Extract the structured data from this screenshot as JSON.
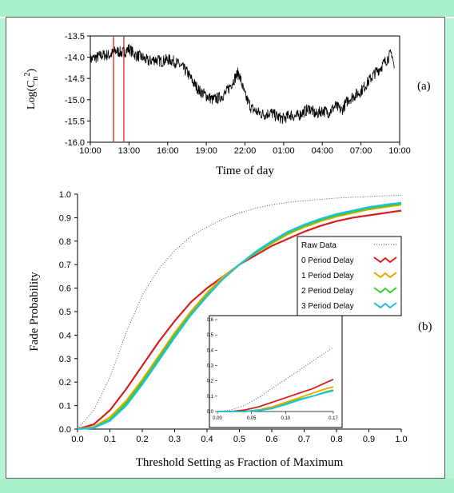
{
  "chart_data": [
    {
      "type": "line",
      "panel_label": "(a)",
      "xlabel": "Time of day",
      "ylabel": "Log(C",
      "ylabel_sub": "n",
      "ylabel_sup": "2",
      "ylabel_end": ")",
      "ylim": [
        -16.0,
        -13.5
      ],
      "xlim": [
        10,
        34
      ],
      "x_ticks": [
        10,
        13,
        16,
        19,
        22,
        25,
        28,
        31,
        34
      ],
      "x_tick_labels": [
        "10:00",
        "13:00",
        "16:00",
        "19:00",
        "22:00",
        "01:00",
        "04:00",
        "07:00",
        "10:00"
      ],
      "y_ticks": [
        -13.5,
        -14.0,
        -14.5,
        -15.0,
        -15.5,
        -16.0
      ],
      "y_tick_labels": [
        "-13.5",
        "-14.0",
        "-14.5",
        "-15.0",
        "-15.5",
        "-16.0"
      ],
      "vertical_markers": [
        11.8,
        12.6
      ],
      "marker_color": "#e04040",
      "series": [
        {
          "color": "#000000",
          "x": [
            10.0,
            10.5,
            11.0,
            11.5,
            12.0,
            12.5,
            13.0,
            13.5,
            14.0,
            14.5,
            15.0,
            15.5,
            16.0,
            16.5,
            17.0,
            17.5,
            18.0,
            18.5,
            19.0,
            19.5,
            20.0,
            20.5,
            21.0,
            21.5,
            22.0,
            22.5,
            23.0,
            23.5,
            24.0,
            24.5,
            25.0,
            25.5,
            26.0,
            26.5,
            27.0,
            27.5,
            28.0,
            28.5,
            29.0,
            29.5,
            30.0,
            30.5,
            31.0,
            31.5,
            32.0,
            32.5,
            33.0,
            33.4,
            33.6
          ],
          "y": [
            -14.05,
            -14.0,
            -13.95,
            -13.95,
            -13.85,
            -13.9,
            -13.8,
            -13.95,
            -14.0,
            -14.1,
            -14.05,
            -14.1,
            -14.05,
            -14.1,
            -14.2,
            -14.35,
            -14.6,
            -14.8,
            -14.9,
            -15.0,
            -14.95,
            -14.85,
            -14.6,
            -14.35,
            -14.9,
            -15.2,
            -15.3,
            -15.35,
            -15.3,
            -15.4,
            -15.45,
            -15.35,
            -15.4,
            -15.3,
            -15.2,
            -15.35,
            -15.25,
            -15.3,
            -15.15,
            -15.25,
            -15.0,
            -14.9,
            -14.8,
            -14.6,
            -14.4,
            -14.25,
            -14.05,
            -13.9,
            -14.3
          ]
        }
      ]
    },
    {
      "type": "line",
      "panel_label": "(b)",
      "xlabel": "Threshold Setting as Fraction of Maximum",
      "ylabel": "Fade Probability",
      "xlim": [
        0,
        1
      ],
      "ylim": [
        0,
        1
      ],
      "x_ticks": [
        0.0,
        0.1,
        0.2,
        0.3,
        0.4,
        0.5,
        0.6,
        0.7,
        0.8,
        0.9,
        1.0
      ],
      "x_tick_labels": [
        "0.0",
        "0.1",
        "0.2",
        "0.3",
        "0.4",
        "0.5",
        "0.6",
        "0.7",
        "0.8",
        "0.9",
        "1.0"
      ],
      "y_ticks": [
        0.0,
        0.1,
        0.2,
        0.3,
        0.4,
        0.5,
        0.6,
        0.7,
        0.8,
        0.9,
        1.0
      ],
      "y_tick_labels": [
        "0.0",
        "0.1",
        "0.2",
        "0.3",
        "0.4",
        "0.5",
        "0.6",
        "0.7",
        "0.8",
        "0.9",
        "1.0"
      ],
      "legend_position": "right",
      "x": [
        0.0,
        0.05,
        0.1,
        0.15,
        0.2,
        0.25,
        0.3,
        0.35,
        0.4,
        0.45,
        0.5,
        0.55,
        0.6,
        0.65,
        0.7,
        0.75,
        0.8,
        0.85,
        0.9,
        0.95,
        1.0
      ],
      "series": [
        {
          "name": "Raw Data",
          "color": "#555555",
          "dotted": true,
          "y": [
            0.0,
            0.08,
            0.22,
            0.41,
            0.57,
            0.68,
            0.76,
            0.82,
            0.86,
            0.895,
            0.92,
            0.94,
            0.955,
            0.965,
            0.972,
            0.978,
            0.983,
            0.987,
            0.99,
            0.993,
            0.995
          ]
        },
        {
          "name": "0 Period Delay",
          "color": "#d42020",
          "y": [
            0.0,
            0.02,
            0.08,
            0.17,
            0.27,
            0.37,
            0.46,
            0.54,
            0.6,
            0.65,
            0.7,
            0.74,
            0.78,
            0.81,
            0.84,
            0.865,
            0.885,
            0.9,
            0.91,
            0.92,
            0.93
          ]
        },
        {
          "name": "1 Period Delay",
          "color": "#e8a800",
          "y": [
            0.0,
            0.01,
            0.05,
            0.12,
            0.21,
            0.31,
            0.41,
            0.5,
            0.58,
            0.65,
            0.7,
            0.75,
            0.79,
            0.83,
            0.86,
            0.885,
            0.905,
            0.92,
            0.935,
            0.945,
            0.955
          ]
        },
        {
          "name": "2 Period Delay",
          "color": "#30d030",
          "y": [
            0.0,
            0.005,
            0.04,
            0.11,
            0.2,
            0.3,
            0.4,
            0.49,
            0.57,
            0.64,
            0.7,
            0.75,
            0.795,
            0.835,
            0.865,
            0.89,
            0.91,
            0.925,
            0.94,
            0.95,
            0.96
          ]
        },
        {
          "name": "3 Period Delay",
          "color": "#20c0e0",
          "y": [
            0.0,
            0.005,
            0.035,
            0.1,
            0.19,
            0.29,
            0.39,
            0.485,
            0.565,
            0.64,
            0.7,
            0.755,
            0.8,
            0.84,
            0.87,
            0.895,
            0.915,
            0.93,
            0.945,
            0.955,
            0.963
          ]
        }
      ],
      "inset": {
        "xlim": [
          0.0,
          0.17
        ],
        "ylim": [
          0.0,
          0.6
        ],
        "x_ticks": [
          0.0,
          0.05,
          0.1,
          0.17
        ],
        "x_tick_labels": [
          "0.00",
          "0.05",
          "0.10",
          "0.17"
        ],
        "y_ticks": [
          0.0,
          0.1,
          0.2,
          0.3,
          0.4,
          0.5,
          0.6
        ],
        "y_tick_labels": [
          "0.0",
          "0.1",
          "0.2",
          "0.3",
          "0.4",
          "0.5",
          "0.6"
        ],
        "x": [
          0.0,
          0.02,
          0.04,
          0.06,
          0.08,
          0.1,
          0.12,
          0.14,
          0.16,
          0.17
        ],
        "series": [
          {
            "name": "Raw Data",
            "color": "#555555",
            "dotted": true,
            "y": [
              0.0,
              0.01,
              0.04,
              0.09,
              0.15,
              0.21,
              0.27,
              0.33,
              0.39,
              0.42
            ]
          },
          {
            "name": "0 Period Delay",
            "color": "#d42020",
            "y": [
              0.0,
              0.0,
              0.01,
              0.03,
              0.06,
              0.09,
              0.12,
              0.15,
              0.19,
              0.21
            ]
          },
          {
            "name": "1 Period Delay",
            "color": "#e8a800",
            "y": [
              0.0,
              0.0,
              0.0,
              0.01,
              0.03,
              0.06,
              0.09,
              0.12,
              0.15,
              0.16
            ]
          },
          {
            "name": "2 Period Delay",
            "color": "#30d030",
            "y": [
              0.0,
              0.0,
              0.0,
              0.01,
              0.02,
              0.05,
              0.08,
              0.1,
              0.13,
              0.14
            ]
          },
          {
            "name": "3 Period Delay",
            "color": "#20c0e0",
            "y": [
              0.0,
              0.0,
              0.0,
              0.005,
              0.02,
              0.045,
              0.075,
              0.1,
              0.125,
              0.135
            ]
          }
        ]
      }
    }
  ]
}
